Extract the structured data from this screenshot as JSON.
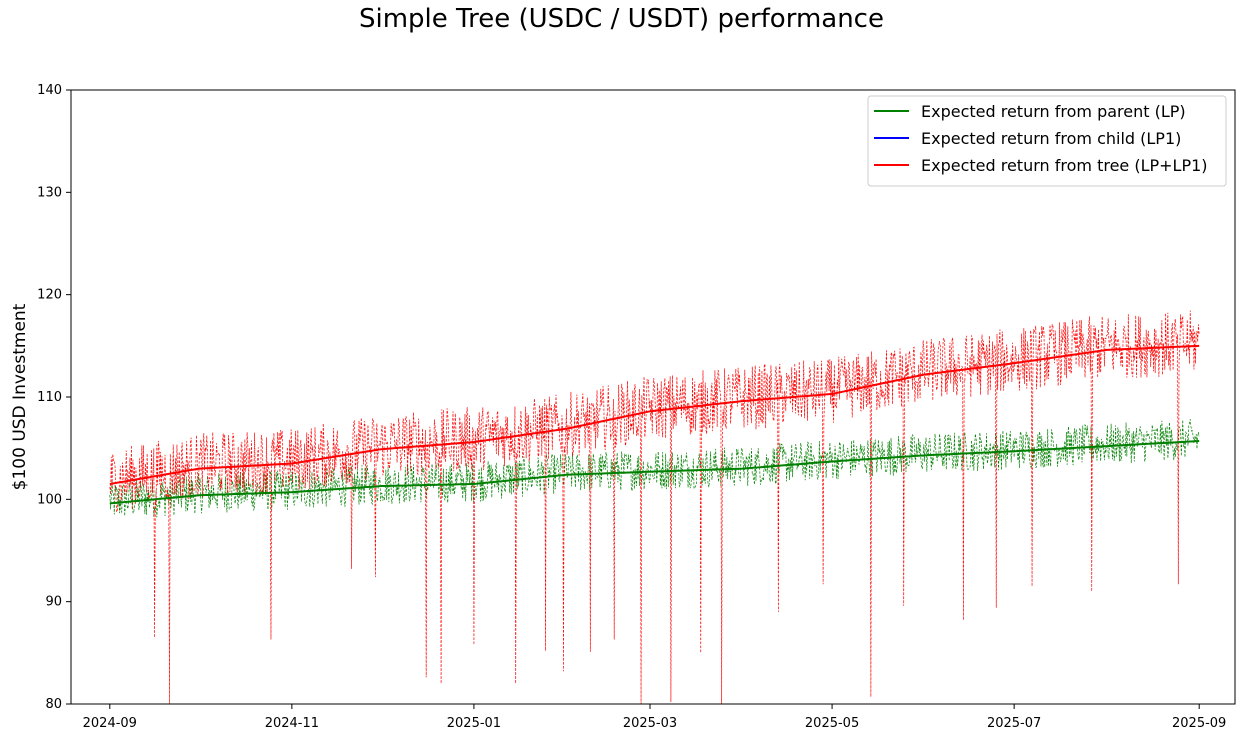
{
  "chart_data": {
    "type": "line",
    "title": "Simple Tree (USDC / USDT) performance",
    "xlabel": "",
    "ylabel": "$100 USD Investment",
    "ylim": [
      80,
      140
    ],
    "xlim": [
      "2024-08-19",
      "2025-09-13"
    ],
    "grid": false,
    "legend_position": "top-right",
    "x_ticks": [
      "2024-09",
      "2024-11",
      "2025-01",
      "2025-03",
      "2025-05",
      "2025-07",
      "2025-09"
    ],
    "y_ticks": [
      80,
      90,
      100,
      110,
      120,
      130,
      140
    ],
    "series": [
      {
        "name": "Expected return from parent (LP)",
        "color": "#008000",
        "style": "solid",
        "x": [
          "2024-09-01",
          "2024-10-01",
          "2024-11-01",
          "2024-12-01",
          "2025-01-01",
          "2025-02-01",
          "2025-03-01",
          "2025-04-01",
          "2025-05-01",
          "2025-06-01",
          "2025-07-01",
          "2025-08-01",
          "2025-09-01"
        ],
        "y": [
          99.6,
          100.4,
          100.7,
          101.3,
          101.5,
          102.4,
          102.7,
          103.0,
          103.7,
          104.3,
          104.7,
          105.2,
          105.7
        ]
      },
      {
        "name": "Expected return from child (LP1)",
        "color": "#0000ff",
        "style": "solid",
        "x": [],
        "y": []
      },
      {
        "name": "Expected return from tree (LP+LP1)",
        "color": "#ff0000",
        "style": "solid",
        "x": [
          "2024-09-01",
          "2024-10-01",
          "2024-11-01",
          "2024-12-01",
          "2025-01-01",
          "2025-02-01",
          "2025-03-01",
          "2025-04-01",
          "2025-05-01",
          "2025-06-01",
          "2025-07-01",
          "2025-08-01",
          "2025-09-01"
        ],
        "y": [
          101.5,
          103.0,
          103.5,
          104.9,
          105.6,
          106.9,
          108.6,
          109.6,
          110.3,
          112.2,
          113.3,
          114.6,
          115.0
        ]
      }
    ],
    "noisy_series": [
      {
        "color": "#008000",
        "style": "dashed",
        "amplitude": 2.5,
        "dips": []
      },
      {
        "color": "#ff0000",
        "style": "dashed",
        "amplitude": 4.0,
        "dips": [
          [
            "2024-09-16",
            86.5
          ],
          [
            "2024-09-21",
            80.0
          ],
          [
            "2024-10-25",
            86.3
          ],
          [
            "2024-11-21",
            93.2
          ],
          [
            "2024-11-29",
            92.4
          ],
          [
            "2024-12-16",
            82.6
          ],
          [
            "2024-12-21",
            82.0
          ],
          [
            "2025-01-01",
            85.8
          ],
          [
            "2025-01-15",
            82.0
          ],
          [
            "2025-01-25",
            85.2
          ],
          [
            "2025-01-31",
            83.2
          ],
          [
            "2025-02-09",
            85.1
          ],
          [
            "2025-02-17",
            86.3
          ],
          [
            "2025-02-26",
            80.0
          ],
          [
            "2025-03-08",
            80.2
          ],
          [
            "2025-03-18",
            85.0
          ],
          [
            "2025-03-25",
            80.0
          ],
          [
            "2025-04-13",
            89.0
          ],
          [
            "2025-04-28",
            91.7
          ],
          [
            "2025-05-14",
            80.7
          ],
          [
            "2025-05-25",
            89.6
          ],
          [
            "2025-06-14",
            88.2
          ],
          [
            "2025-06-25",
            89.4
          ],
          [
            "2025-07-07",
            91.5
          ],
          [
            "2025-07-27",
            91.0
          ],
          [
            "2025-08-25",
            91.7
          ]
        ]
      }
    ]
  }
}
